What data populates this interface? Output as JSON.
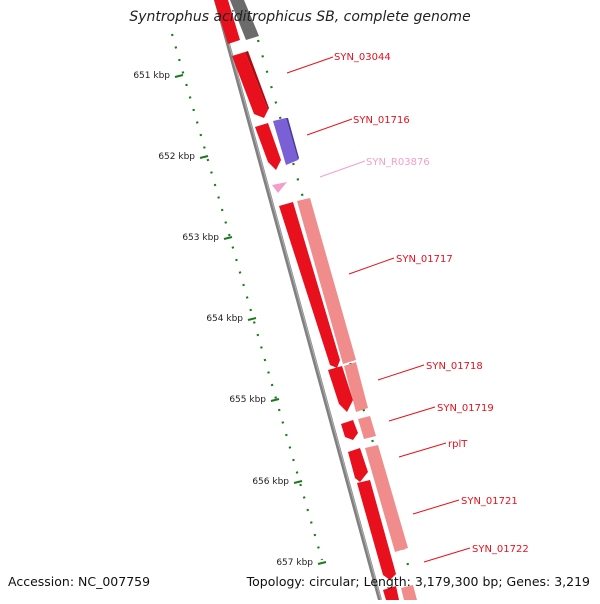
{
  "title": "Syntrophus aciditrophicus SB, complete genome",
  "accession_text": "Accession: NC_007759",
  "summary_text": "Topology: circular; Length: 3,179,300 bp; Genes: 3,219",
  "kbp_ticks": [
    "651 kbp",
    "652 kbp",
    "653 kbp",
    "654 kbp",
    "655 kbp",
    "656 kbp",
    "657 kbp"
  ],
  "genes": [
    {
      "label": "SYN_03044",
      "color": "#e8101c"
    },
    {
      "label": "SYN_01716",
      "color": "#e8101c"
    },
    {
      "label": "SYN_R03876",
      "color": "#f19fc8"
    },
    {
      "label": "SYN_01717",
      "color": "#e8101c"
    },
    {
      "label": "SYN_01718",
      "color": "#e8101c"
    },
    {
      "label": "SYN_01719",
      "color": "#e8101c"
    },
    {
      "label": "rplT",
      "color": "#e8101c"
    },
    {
      "label": "SYN_01721",
      "color": "#e8101c"
    },
    {
      "label": "SYN_01722",
      "color": "#e8101c"
    }
  ],
  "colors": {
    "cds": "#e8101c",
    "cds_light": "#f08c8c",
    "rna": "#f19fc8",
    "other_feature": "#7b5fd6",
    "backbone": "#808080",
    "tick_mark": "#1a7a1a"
  }
}
